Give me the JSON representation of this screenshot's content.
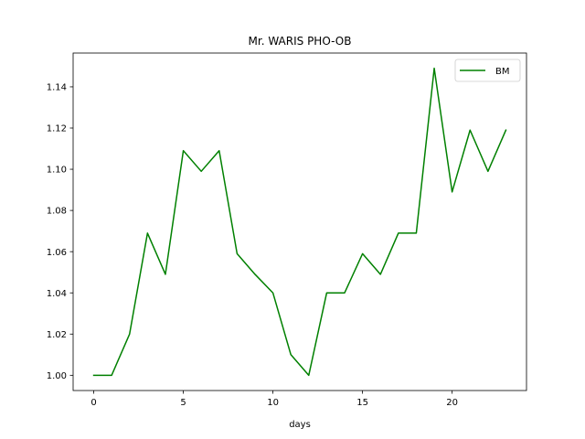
{
  "chart_data": {
    "type": "line",
    "title": "Mr. WARIS PHO-OB",
    "xlabel": "days",
    "ylabel": "",
    "x": [
      0,
      1,
      2,
      3,
      4,
      5,
      6,
      7,
      8,
      9,
      10,
      11,
      12,
      13,
      14,
      15,
      16,
      17,
      18,
      19,
      20,
      21,
      22,
      23
    ],
    "series": [
      {
        "name": "BM",
        "color": "#008000",
        "values": [
          1.0,
          1.0,
          1.02,
          1.069,
          1.049,
          1.109,
          1.099,
          1.109,
          1.059,
          1.049,
          1.04,
          1.01,
          1.0,
          1.04,
          1.04,
          1.059,
          1.049,
          1.069,
          1.069,
          1.149,
          1.089,
          1.119,
          1.099,
          1.119
        ]
      }
    ],
    "xlim": [
      -1.15,
      24.15
    ],
    "ylim": [
      0.9926,
      1.1564
    ],
    "xticks": [
      0,
      5,
      10,
      15,
      20
    ],
    "xtick_labels": [
      "0",
      "5",
      "10",
      "15",
      "20"
    ],
    "yticks": [
      1.0,
      1.02,
      1.04,
      1.06,
      1.08,
      1.1,
      1.12,
      1.14
    ],
    "ytick_labels": [
      "1.00",
      "1.02",
      "1.04",
      "1.06",
      "1.08",
      "1.10",
      "1.12",
      "1.14"
    ],
    "grid": false,
    "legend_position": "top-right"
  }
}
